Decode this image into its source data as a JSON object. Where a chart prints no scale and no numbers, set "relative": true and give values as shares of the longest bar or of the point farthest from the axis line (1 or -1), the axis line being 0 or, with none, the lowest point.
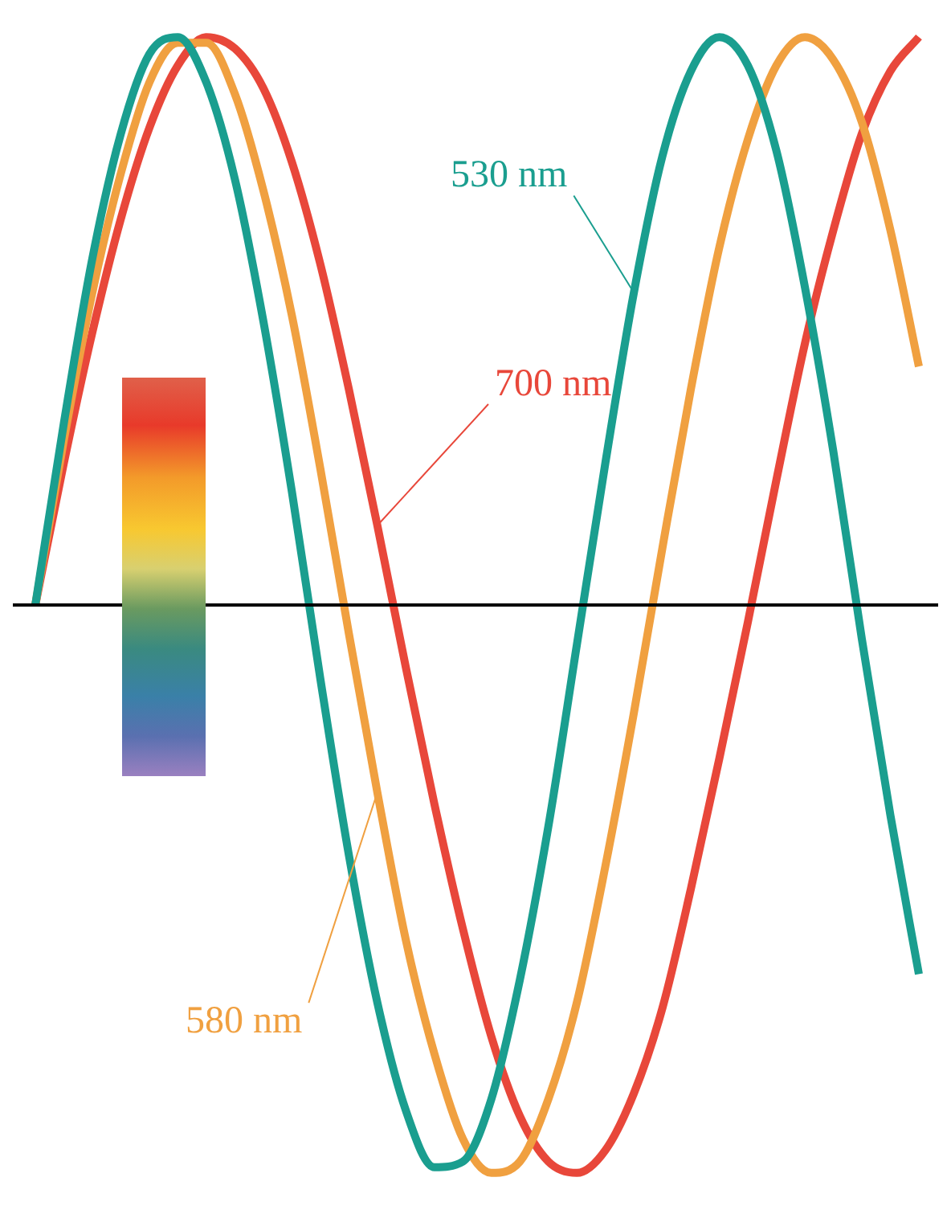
{
  "chart_data": {
    "type": "line",
    "relative": true,
    "marker": "none",
    "legend": false,
    "categories": [
      null,
      null,
      null,
      null,
      null,
      null,
      null,
      null,
      null,
      null,
      null,
      null,
      null,
      null,
      null,
      null,
      null,
      null,
      null,
      null,
      null,
      null,
      null,
      null,
      null,
      null,
      null,
      null,
      null,
      null,
      null,
      null
    ],
    "series": [
      {
        "name": "530 nm",
        "color": "#1a9e8f",
        "values": [
          0,
          0.32,
          0.61,
          0.83,
          0.97,
          1.0,
          0.92,
          0.75,
          0.5,
          0.2,
          -0.13,
          -0.44,
          -0.7,
          -0.89,
          -0.99,
          -0.98,
          -0.87,
          -0.66,
          -0.39,
          -0.07,
          0.25,
          0.55,
          0.79,
          0.94,
          1.0,
          0.95,
          0.8,
          0.56,
          0.27,
          -0.06,
          -0.37,
          -0.65
        ]
      },
      {
        "name": "580 nm",
        "color": "#f0a040",
        "values": [
          0,
          0.29,
          0.55,
          0.76,
          0.92,
          0.99,
          0.99,
          0.9,
          0.73,
          0.51,
          0.24,
          -0.05,
          -0.33,
          -0.59,
          -0.79,
          -0.94,
          -1.0,
          -0.98,
          -0.87,
          -0.7,
          -0.46,
          -0.19,
          0.1,
          0.38,
          0.63,
          0.82,
          0.95,
          1.0,
          0.96,
          0.85,
          0.66,
          0.42
        ]
      },
      {
        "name": "700 nm",
        "color": "#e8473a",
        "values": [
          0,
          0.25,
          0.48,
          0.68,
          0.84,
          0.95,
          1.0,
          0.98,
          0.91,
          0.78,
          0.6,
          0.38,
          0.14,
          -0.11,
          -0.35,
          -0.57,
          -0.76,
          -0.9,
          -0.98,
          -1.0,
          -0.96,
          -0.86,
          -0.71,
          -0.5,
          -0.27,
          -0.03,
          0.22,
          0.46,
          0.66,
          0.83,
          0.94,
          1.0
        ]
      }
    ]
  }
}
